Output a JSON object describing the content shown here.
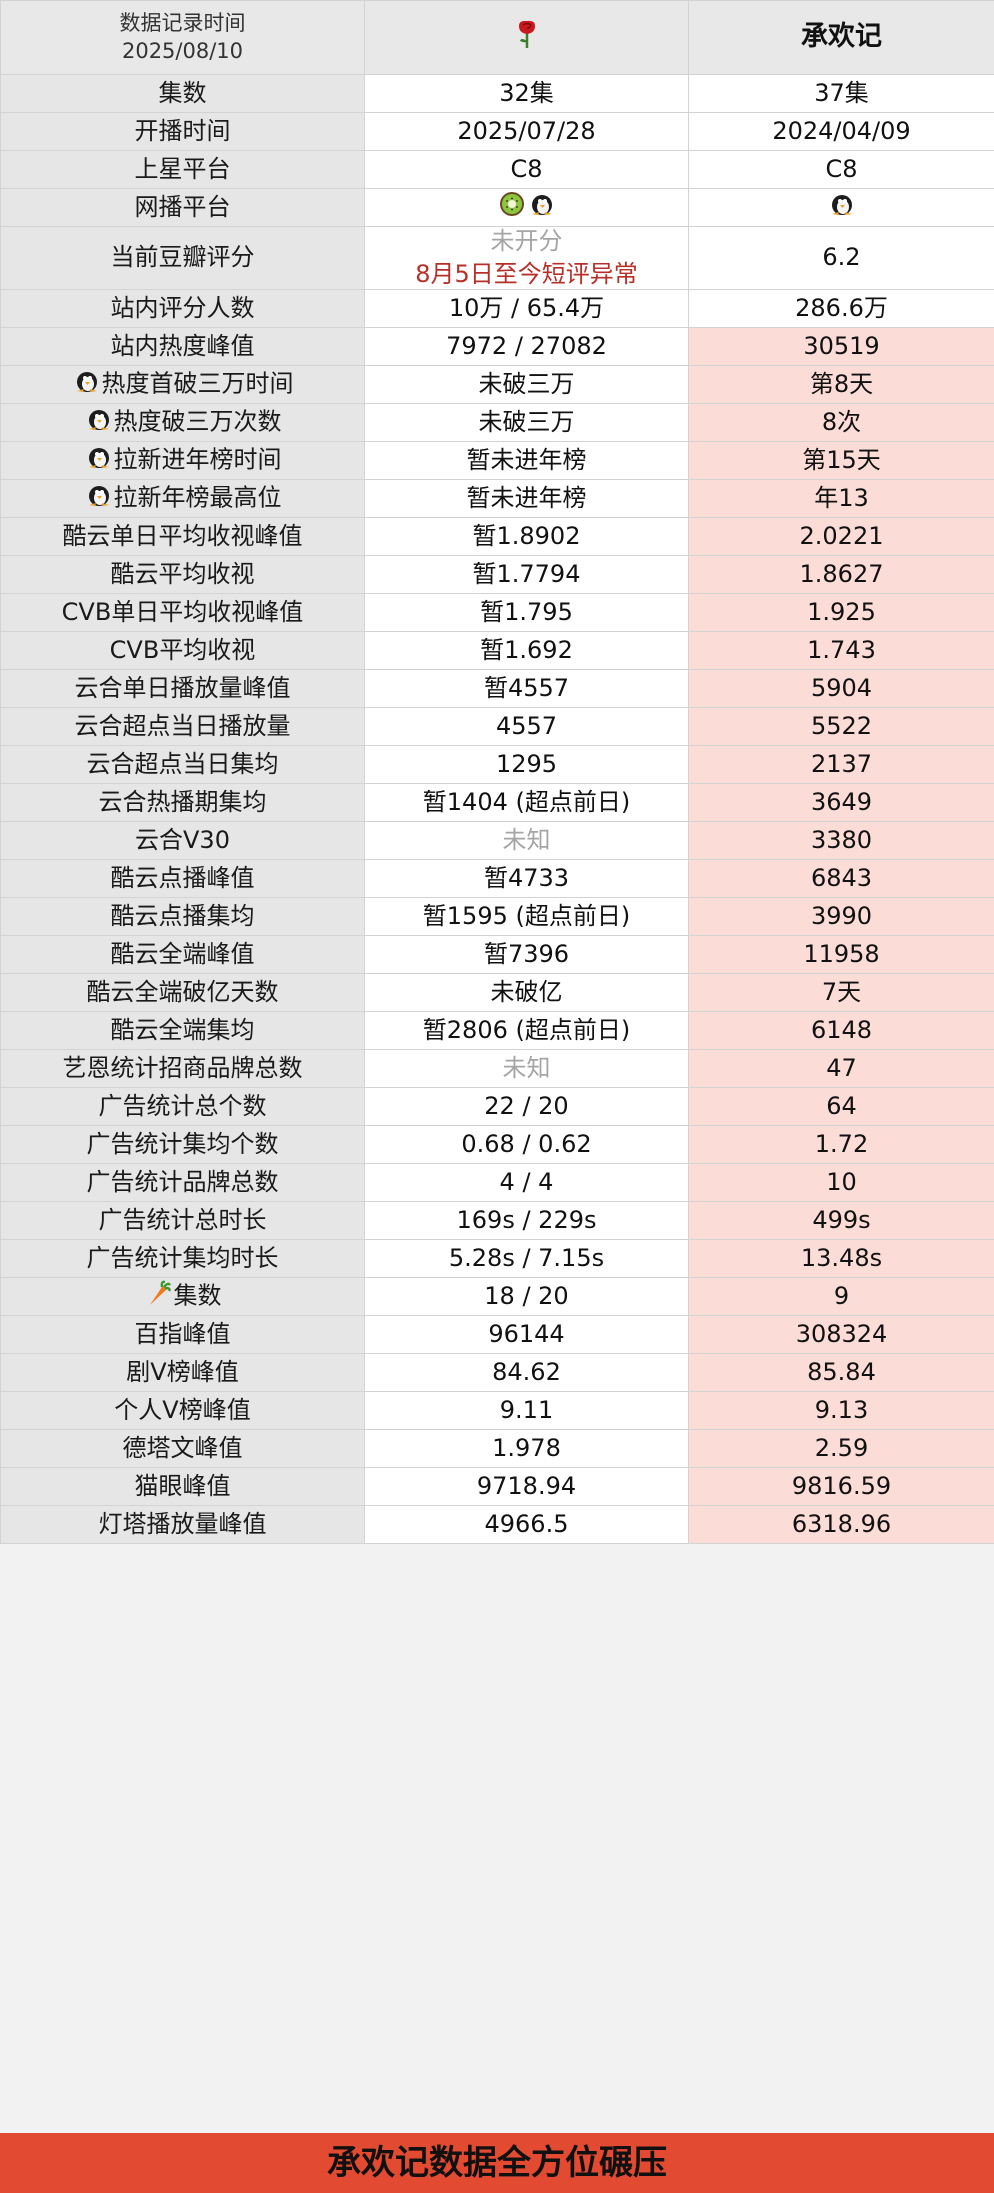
{
  "header": {
    "record_title": "数据记录时间",
    "record_date": "2025/08/10",
    "col1_icon": "rose-icon",
    "col2_title": "承欢记"
  },
  "rows": [
    {
      "label": "集数",
      "v1": "32集",
      "v2": "37集"
    },
    {
      "label": "开播时间",
      "v1": "2025/07/28",
      "v2": "2024/04/09"
    },
    {
      "label": "上星平台",
      "v1": "C8",
      "v2": "C8"
    },
    {
      "label": "网播平台",
      "v1_icons": [
        "kiwi-icon",
        "penguin-icon"
      ],
      "v2_icons": [
        "penguin-icon"
      ]
    },
    {
      "label": "当前豆瓣评分",
      "v1": "未开分",
      "v1_note": "8月5日至今短评异常",
      "v2": "6.2"
    },
    {
      "label": "站内评分人数",
      "v1": "10万 / 65.4万",
      "v2": "286.6万"
    },
    {
      "label": "站内热度峰值",
      "v1": "7972 / 27082",
      "v2": "30519",
      "hl": true
    },
    {
      "label": "热度首破三万时间",
      "label_icon": "penguin-icon",
      "v1": "未破三万",
      "v2": "第8天",
      "hl": true
    },
    {
      "label": "热度破三万次数",
      "label_icon": "penguin-icon",
      "v1": "未破三万",
      "v2": "8次",
      "hl": true
    },
    {
      "label": "拉新进年榜时间",
      "label_icon": "penguin-icon",
      "v1": "暂未进年榜",
      "v2": "第15天",
      "hl": true
    },
    {
      "label": "拉新年榜最高位",
      "label_icon": "penguin-icon",
      "v1": "暂未进年榜",
      "v2": "年13",
      "hl": true
    },
    {
      "label": "酷云单日平均收视峰值",
      "v1": "暂1.8902",
      "v2": "2.0221",
      "hl": true
    },
    {
      "label": "酷云平均收视",
      "v1": "暂1.7794",
      "v2": "1.8627",
      "hl": true
    },
    {
      "label": "CVB单日平均收视峰值",
      "v1": "暂1.795",
      "v2": "1.925",
      "hl": true
    },
    {
      "label": "CVB平均收视",
      "v1": "暂1.692",
      "v2": "1.743",
      "hl": true
    },
    {
      "label": "云合单日播放量峰值",
      "v1": "暂4557",
      "v2": "5904",
      "hl": true
    },
    {
      "label": "云合超点当日播放量",
      "v1": "4557",
      "v2": "5522",
      "hl": true
    },
    {
      "label": "云合超点当日集均",
      "v1": "1295",
      "v2": "2137",
      "hl": true
    },
    {
      "label": "云合热播期集均",
      "v1": "暂1404 (超点前日)",
      "v2": "3649",
      "hl": true
    },
    {
      "label": "云合V30",
      "v1": "未知",
      "v1_muted": true,
      "v2": "3380",
      "hl": true
    },
    {
      "label": "酷云点播峰值",
      "v1": "暂4733",
      "v2": "6843",
      "hl": true
    },
    {
      "label": "酷云点播集均",
      "v1": "暂1595 (超点前日)",
      "v2": "3990",
      "hl": true
    },
    {
      "label": "酷云全端峰值",
      "v1": "暂7396",
      "v2": "11958",
      "hl": true
    },
    {
      "label": "酷云全端破亿天数",
      "v1": "未破亿",
      "v2": "7天",
      "hl": true
    },
    {
      "label": "酷云全端集均",
      "v1": "暂2806 (超点前日)",
      "v2": "6148",
      "hl": true
    },
    {
      "label": "艺恩统计招商品牌总数",
      "v1": "未知",
      "v1_muted": true,
      "v2": "47",
      "hl": true
    },
    {
      "label": "广告统计总个数",
      "v1": "22 / 20",
      "v2": "64",
      "hl": true
    },
    {
      "label": "广告统计集均个数",
      "v1": "0.68 / 0.62",
      "v2": "1.72",
      "hl": true
    },
    {
      "label": "广告统计品牌总数",
      "v1": "4 / 4",
      "v2": "10",
      "hl": true
    },
    {
      "label": "广告统计总时长",
      "v1": "169s / 229s",
      "v2": "499s",
      "hl": true
    },
    {
      "label": "广告统计集均时长",
      "v1": "5.28s / 7.15s",
      "v2": "13.48s",
      "hl": true
    },
    {
      "label": "集数",
      "label_icon": "carrot-icon",
      "v1": "18 / 20",
      "v2": "9",
      "hl": true
    },
    {
      "label": "百指峰值",
      "v1": "96144",
      "v2": "308324",
      "hl": true
    },
    {
      "label": "剧V榜峰值",
      "v1": "84.62",
      "v2": "85.84",
      "hl": true
    },
    {
      "label": "个人V榜峰值",
      "v1": "9.11",
      "v2": "9.13",
      "hl": true
    },
    {
      "label": "德塔文峰值",
      "v1": "1.978",
      "v2": "2.59",
      "hl": true
    },
    {
      "label": "猫眼峰值",
      "v1": "9718.94",
      "v2": "9816.59",
      "hl": true
    },
    {
      "label": "灯塔播放量峰值",
      "v1": "4966.5",
      "v2": "6318.96",
      "hl": true
    }
  ],
  "banner": {
    "text": "承欢记数据全方位碾压"
  },
  "colors": {
    "highlight": "#fbdcd6",
    "label_bg": "#e6e6e6",
    "banner": "#e24a32",
    "note": "#b6302a",
    "muted": "#a5a5a5"
  }
}
